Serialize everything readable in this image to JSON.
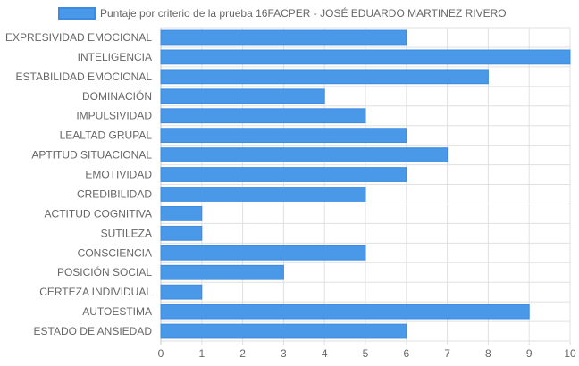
{
  "chart_data": {
    "type": "bar",
    "orientation": "horizontal",
    "series": [
      {
        "name": "Puntaje por criterio de la prueba 16FACPER - JOSÉ EDUARDO MARTINEZ RIVERO",
        "values": [
          6,
          10,
          8,
          4,
          5,
          6,
          7,
          6,
          5,
          1,
          1,
          5,
          3,
          1,
          9,
          6
        ]
      }
    ],
    "categories": [
      "EXPRESIVIDAD EMOCIONAL",
      "INTELIGENCIA",
      "ESTABILIDAD EMOCIONAL",
      "DOMINACIÓN",
      "IMPULSIVIDAD",
      "LEALTAD GRUPAL",
      "APTITUD SITUACIONAL",
      "EMOTIVIDAD",
      "CREDIBILIDAD",
      "ACTITUD COGNITIVA",
      "SUTILEZA",
      "CONSCIENCIA",
      "POSICIÓN SOCIAL",
      "CERTEZA INDIVIDUAL",
      "AUTOESTIMA",
      "ESTADO DE ANSIEDAD"
    ],
    "xlim": [
      0,
      10
    ],
    "xticks": [
      "0",
      "1",
      "2",
      "3",
      "4",
      "5",
      "6",
      "7",
      "8",
      "9",
      "10"
    ],
    "grid": true,
    "legend_position": "top",
    "colors": {
      "bar_fill": "#4a98e8",
      "bar_border": "#3d8be0",
      "grid": "#e0e0e0",
      "axis": "#d0d0d0",
      "text": "#666666"
    }
  }
}
